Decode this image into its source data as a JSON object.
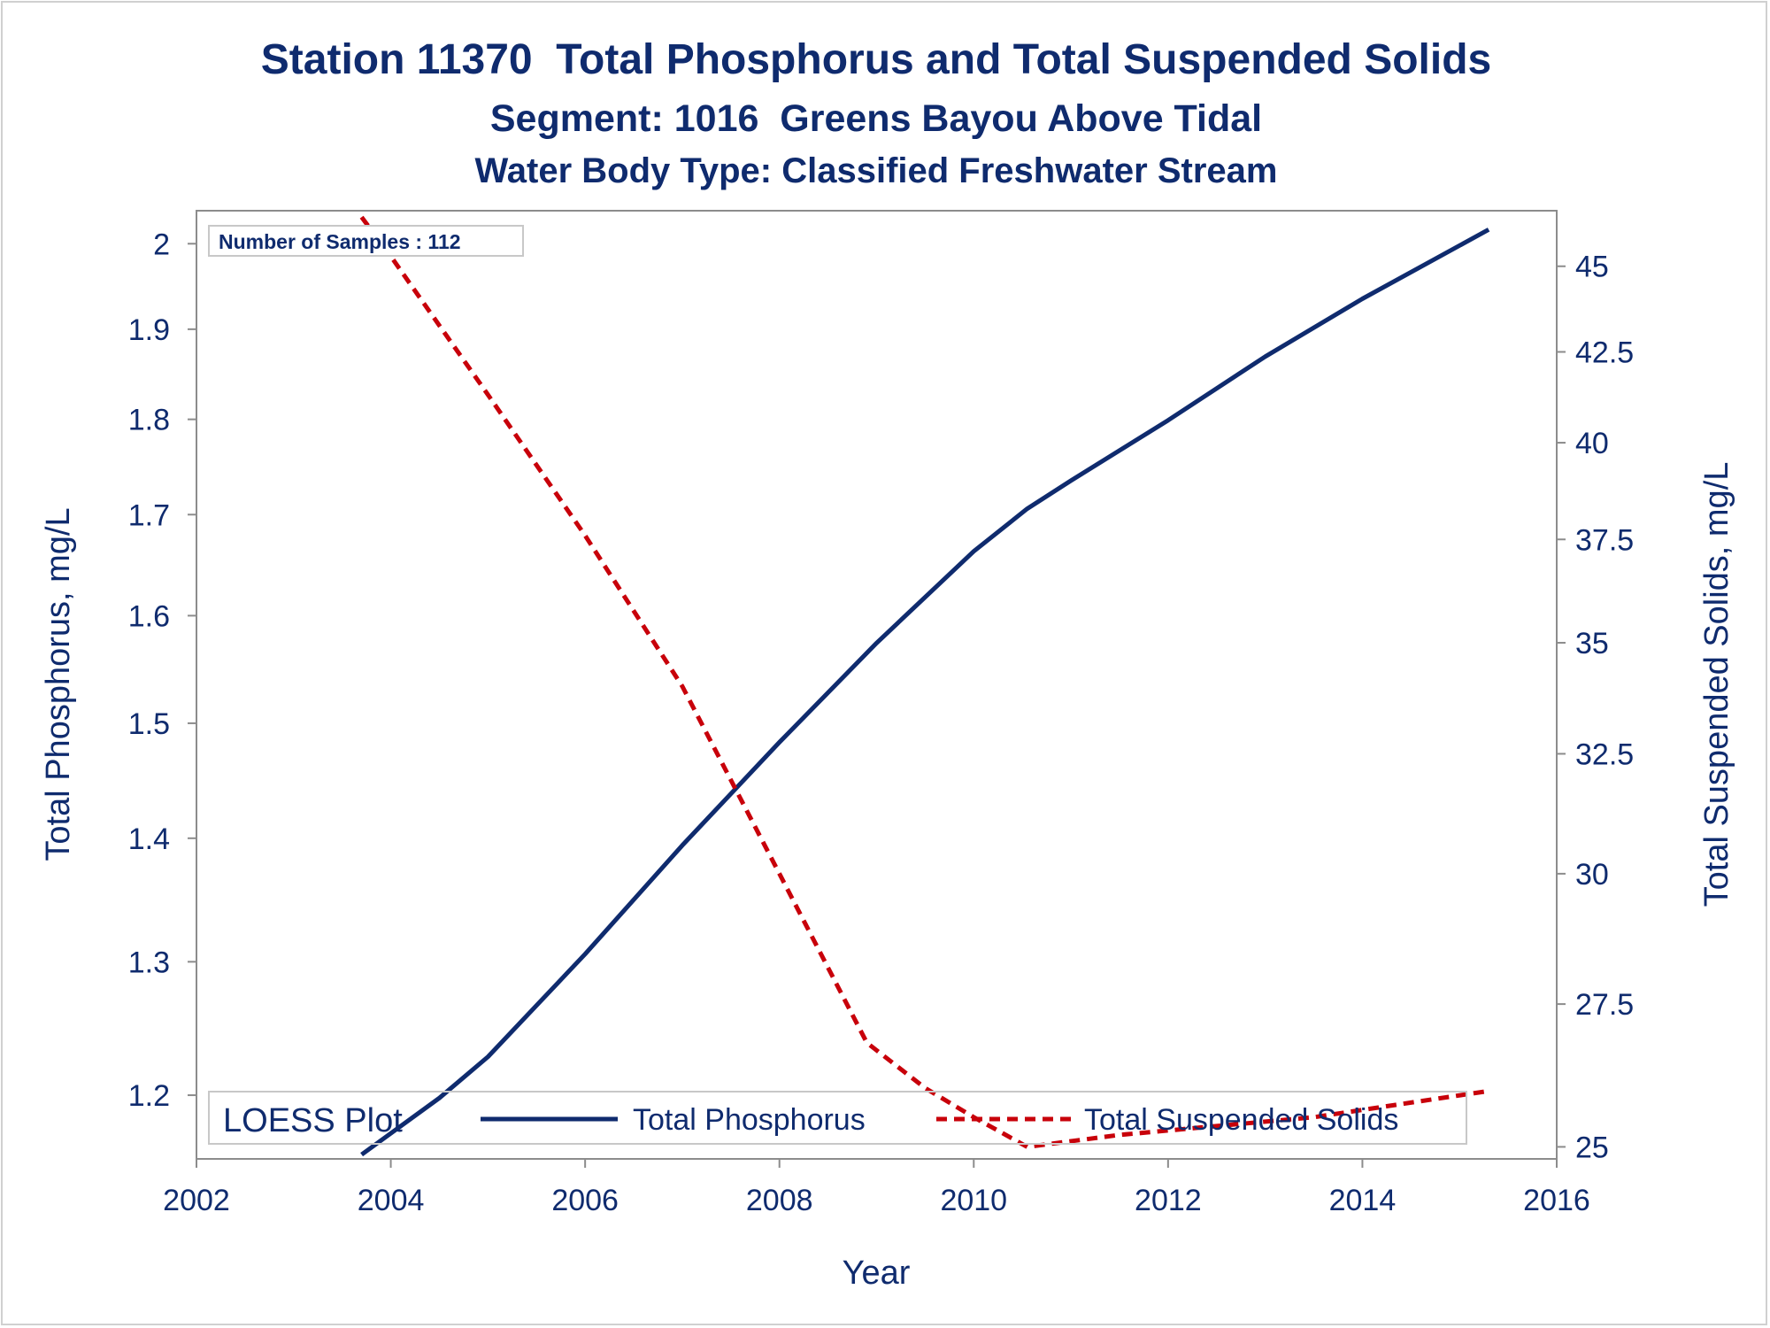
{
  "chart_data": {
    "type": "line",
    "title": "Station 11370  Total Phosphorus and Total Suspended Solids",
    "subtitle": "Segment: 1016  Greens Bayou Above Tidal",
    "subtitle2": "Water Body Type: Classified Freshwater Stream",
    "annotation": "Number of Samples : 112",
    "xlabel": "Year",
    "ylabel_left": "Total Phosphorus, mg/L",
    "ylabel_right": "Total Suspended Solids, mg/L",
    "y_scale": "log",
    "xlim": [
      2002,
      2016
    ],
    "ylim_left": [
      1.155,
      2.04
    ],
    "ylim_right": [
      24.8,
      46.7
    ],
    "x_ticks": [
      2002,
      2004,
      2006,
      2008,
      2010,
      2012,
      2014,
      2016
    ],
    "y_ticks_left": [
      1.2,
      1.3,
      1.4,
      1.5,
      1.6,
      1.7,
      1.8,
      1.9,
      2
    ],
    "y_ticks_left_labels": [
      "1.2",
      "1.3",
      "1.4",
      "1.5",
      "1.6",
      "1.7",
      "1.8",
      "1.9",
      "2"
    ],
    "y_ticks_right": [
      25,
      27.5,
      30,
      32.5,
      35,
      37.5,
      40,
      42.5,
      45
    ],
    "y_ticks_right_labels": [
      "25",
      "27.5",
      "30",
      "32.5",
      "35",
      "37.5",
      "40",
      "42.5",
      "45"
    ],
    "grid": false,
    "legend": {
      "title": "LOESS Plot",
      "placement": "bottom-inside",
      "entries": [
        "Total Phosphorus",
        "Total Suspended Solids"
      ]
    },
    "series": [
      {
        "name": "Total Phosphorus",
        "axis": "left",
        "color": "#0f2b6e",
        "dash": "solid",
        "x": [
          2003.7,
          2004.5,
          2005.0,
          2006.0,
          2007.0,
          2008.0,
          2009.0,
          2010.0,
          2010.55,
          2011.0,
          2012.0,
          2013.0,
          2014.0,
          2015.3
        ],
        "y": [
          1.158,
          1.198,
          1.228,
          1.306,
          1.394,
          1.483,
          1.574,
          1.663,
          1.706,
          1.735,
          1.799,
          1.869,
          1.935,
          2.017
        ]
      },
      {
        "name": "Total Suspended Solids",
        "axis": "right",
        "color": "#c8000a",
        "dash": "dashed",
        "x": [
          2003.7,
          2004.0,
          2005.0,
          2006.0,
          2007.0,
          2008.0,
          2008.9,
          2009.5,
          2010.0,
          2010.55,
          2011.5,
          2012.5,
          2013.5,
          2014.5,
          2015.3
        ],
        "y": [
          46.5,
          45.3,
          41.3,
          37.6,
          34.0,
          30.0,
          26.8,
          26.0,
          25.5,
          25.0,
          25.2,
          25.35,
          25.5,
          25.75,
          25.95
        ]
      }
    ]
  }
}
